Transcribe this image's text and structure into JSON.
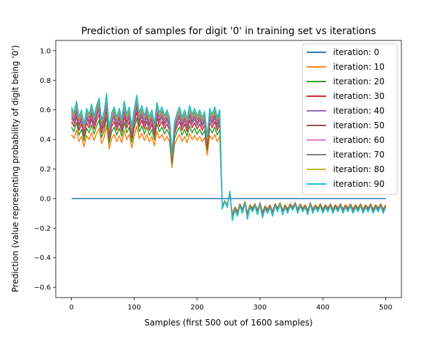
{
  "chart_data": {
    "type": "line",
    "title": "Prediction of samples for digit '0' in training set vs iterations",
    "xlabel": "Samples (first 500 out of 1600 samples)",
    "ylabel": "Prediction (value representing probability of digit being '0')",
    "xlim": [
      -25,
      525
    ],
    "ylim": [
      -0.67,
      1.07
    ],
    "xticks": [
      0,
      100,
      200,
      300,
      400,
      500
    ],
    "yticks": [
      -0.6,
      -0.4,
      -0.2,
      0.0,
      0.2,
      0.4,
      0.6,
      0.8,
      1.0
    ],
    "xtick_labels": [
      "0",
      "100",
      "200",
      "300",
      "400",
      "500"
    ],
    "ytick_labels": [
      "−0.6",
      "−0.4",
      "−0.2",
      "0.0",
      "0.2",
      "0.4",
      "0.6",
      "0.8",
      "1.0"
    ],
    "grid": false,
    "legend_position": "top-right",
    "x_start": 0,
    "x_step": 4,
    "final_profile": [
      0.62,
      0.58,
      0.66,
      0.55,
      0.6,
      0.5,
      0.61,
      0.57,
      0.64,
      0.56,
      0.63,
      0.68,
      0.53,
      0.59,
      0.71,
      0.48,
      0.58,
      0.62,
      0.55,
      0.61,
      0.54,
      0.66,
      0.57,
      0.62,
      0.49,
      0.61,
      0.7,
      0.58,
      0.63,
      0.56,
      0.62,
      0.55,
      0.6,
      0.51,
      0.65,
      0.58,
      0.62,
      0.56,
      0.6,
      0.55,
      0.3,
      0.52,
      0.58,
      0.62,
      0.55,
      0.6,
      0.54,
      0.63,
      0.57,
      0.61,
      0.56,
      0.6,
      0.55,
      0.59,
      0.42,
      0.61,
      0.57,
      0.62,
      0.55,
      0.6,
      -0.07,
      -0.02,
      -0.06,
      0.05,
      -0.15,
      -0.08,
      -0.12,
      -0.05,
      -0.1,
      -0.03,
      -0.14,
      -0.06,
      -0.09,
      -0.05,
      -0.11,
      -0.04,
      -0.13,
      -0.07,
      -0.1,
      -0.06,
      -0.12,
      -0.05,
      -0.09,
      -0.04,
      -0.11,
      -0.06,
      -0.1,
      -0.05,
      -0.08,
      -0.04,
      -0.1,
      -0.05,
      -0.09,
      -0.06,
      -0.11,
      -0.04,
      -0.1,
      -0.06,
      -0.09,
      -0.05,
      -0.1,
      -0.06,
      -0.09,
      -0.05,
      -0.1,
      -0.06,
      -0.09,
      -0.05,
      -0.1,
      -0.06,
      -0.09,
      -0.05,
      -0.1,
      -0.06,
      -0.09,
      -0.05,
      -0.1,
      -0.06,
      -0.09,
      -0.05,
      -0.1,
      -0.06,
      -0.09,
      -0.05,
      -0.1,
      -0.06
    ],
    "sample_count": 126,
    "series": [
      {
        "name": "iteration: 0",
        "color": "#1f77b4",
        "scale": 0.0
      },
      {
        "name": "iteration: 10",
        "color": "#ff7f0e",
        "scale": 0.7
      },
      {
        "name": "iteration: 20",
        "color": "#2ca02c",
        "scale": 0.78
      },
      {
        "name": "iteration: 30",
        "color": "#d62728",
        "scale": 0.84
      },
      {
        "name": "iteration: 40",
        "color": "#9467bd",
        "scale": 0.88
      },
      {
        "name": "iteration: 50",
        "color": "#8c564b",
        "scale": 0.91
      },
      {
        "name": "iteration: 60",
        "color": "#e377c2",
        "scale": 0.94
      },
      {
        "name": "iteration: 70",
        "color": "#7f7f7f",
        "scale": 0.96
      },
      {
        "name": "iteration: 80",
        "color": "#bcbd22",
        "scale": 0.98
      },
      {
        "name": "iteration: 90",
        "color": "#17becf",
        "scale": 1.0
      }
    ]
  }
}
